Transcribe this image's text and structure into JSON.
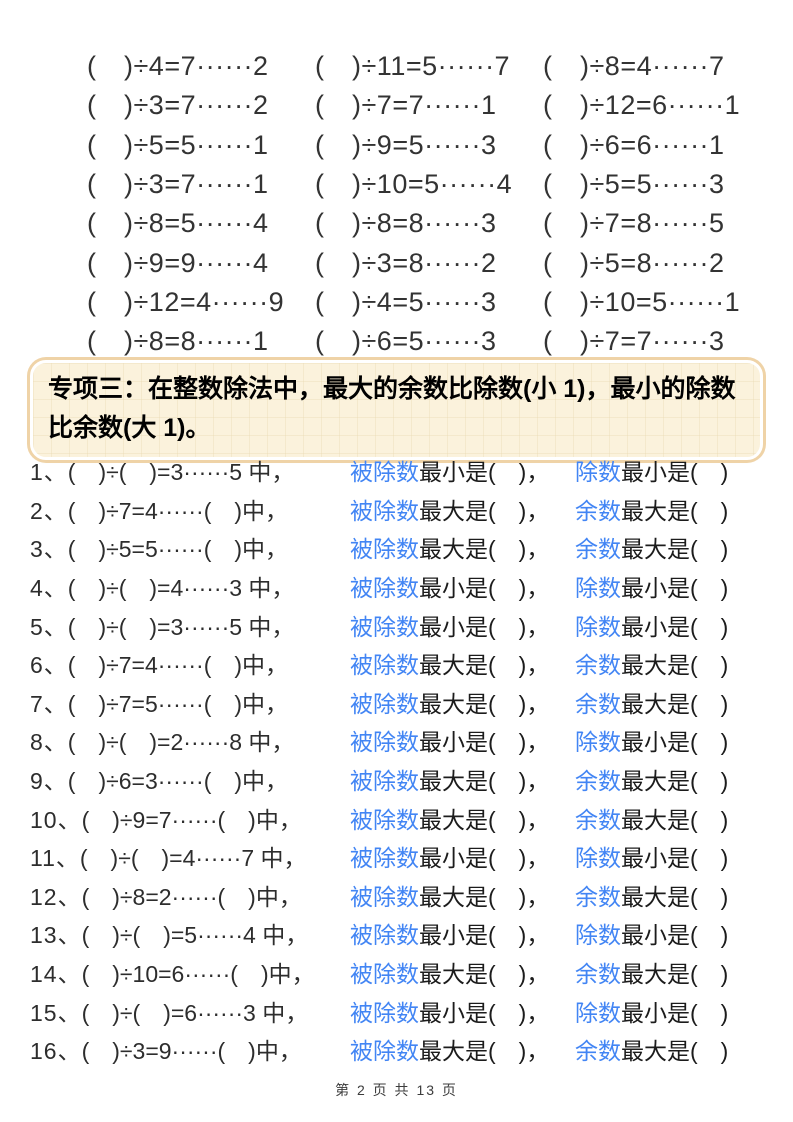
{
  "colors": {
    "term_blue": "#4285f4",
    "callout_bg": "#fbf2dc",
    "callout_border": "#efd3a7"
  },
  "top_equations": [
    "(　)÷4=7······2",
    "(　)÷11=5······7",
    "(　)÷8=4······7",
    "(　)÷3=7······2",
    "(　)÷7=7······1",
    "(　)÷12=6······1",
    "(　)÷5=5······1",
    "(　)÷9=5······3",
    "(　)÷6=6······1",
    "(　)÷3=7······1",
    "(　)÷10=5······4",
    "(　)÷5=5······3",
    "(　)÷8=5······4",
    "(　)÷8=8······3",
    "(　)÷7=8······5",
    "(　)÷9=9······4",
    "(　)÷3=8······2",
    "(　)÷5=8······2",
    "(　)÷12=4······9",
    "(　)÷4=5······3",
    "(　)÷10=5······1",
    "(　)÷8=8······1",
    "(　)÷6=5······3",
    "(　)÷7=7······3"
  ],
  "callout": {
    "text": "专项三：在整数除法中，最大的余数比除数(小 1)，最小的除数比余数(大 1)。"
  },
  "problems": [
    {
      "num": "1、",
      "eq": "(　)÷(　)=3······5 中，",
      "term1": "被除数",
      "clause1": "最小是(　)，",
      "term2": "除数",
      "clause2": "最小是(　)"
    },
    {
      "num": "2、",
      "eq": "(　)÷7=4······(　)中，",
      "term1": "被除数",
      "clause1": "最大是(　)，",
      "term2": "余数",
      "clause2": "最大是(　)"
    },
    {
      "num": "3、",
      "eq": "(　)÷5=5······(　)中，",
      "term1": "被除数",
      "clause1": "最大是(　)，",
      "term2": "余数",
      "clause2": "最大是(　)"
    },
    {
      "num": "4、",
      "eq": "(　)÷(　)=4······3 中，",
      "term1": "被除数",
      "clause1": "最小是(　)，",
      "term2": "除数",
      "clause2": "最小是(　)"
    },
    {
      "num": "5、",
      "eq": "(　)÷(　)=3······5 中，",
      "term1": "被除数",
      "clause1": "最小是(　)，",
      "term2": "除数",
      "clause2": "最小是(　)"
    },
    {
      "num": "6、",
      "eq": "(　)÷7=4······(　)中，",
      "term1": "被除数",
      "clause1": "最大是(　)，",
      "term2": "余数",
      "clause2": "最大是(　)"
    },
    {
      "num": "7、",
      "eq": "(　)÷7=5······(　)中，",
      "term1": "被除数",
      "clause1": "最大是(　)，",
      "term2": "余数",
      "clause2": "最大是(　)"
    },
    {
      "num": "8、",
      "eq": "(　)÷(　)=2······8 中，",
      "term1": "被除数",
      "clause1": "最小是(　)，",
      "term2": "除数",
      "clause2": "最小是(　)"
    },
    {
      "num": "9、",
      "eq": "(　)÷6=3······(　)中，",
      "term1": "被除数",
      "clause1": "最大是(　)，",
      "term2": "余数",
      "clause2": "最大是(　)"
    },
    {
      "num": "10、",
      "eq": "(　)÷9=7······(　)中，",
      "term1": "被除数",
      "clause1": "最大是(　)，",
      "term2": "余数",
      "clause2": "最大是(　)"
    },
    {
      "num": "11、",
      "eq": "(　)÷(　)=4······7 中，",
      "term1": "被除数",
      "clause1": "最小是(　)，",
      "term2": "除数",
      "clause2": "最小是(　)"
    },
    {
      "num": "12、",
      "eq": "(　)÷8=2······(　)中，",
      "term1": "被除数",
      "clause1": "最大是(　)，",
      "term2": "余数",
      "clause2": "最大是(　)"
    },
    {
      "num": "13、",
      "eq": "(　)÷(　)=5······4 中，",
      "term1": "被除数",
      "clause1": "最小是(　)，",
      "term2": "除数",
      "clause2": "最小是(　)"
    },
    {
      "num": "14、",
      "eq": "(　)÷10=6······(　)中，",
      "term1": "被除数",
      "clause1": "最大是(　)，",
      "term2": "余数",
      "clause2": "最大是(　)"
    },
    {
      "num": "15、",
      "eq": "(　)÷(　)=6······3 中，",
      "term1": "被除数",
      "clause1": "最小是(　)，",
      "term2": "除数",
      "clause2": "最小是(　)"
    },
    {
      "num": "16、",
      "eq": "(　)÷3=9······(　)中，",
      "term1": "被除数",
      "clause1": "最大是(　)，",
      "term2": "余数",
      "clause2": "最大是(　)"
    }
  ],
  "footer": {
    "text": "第 2 页 共 13 页"
  }
}
